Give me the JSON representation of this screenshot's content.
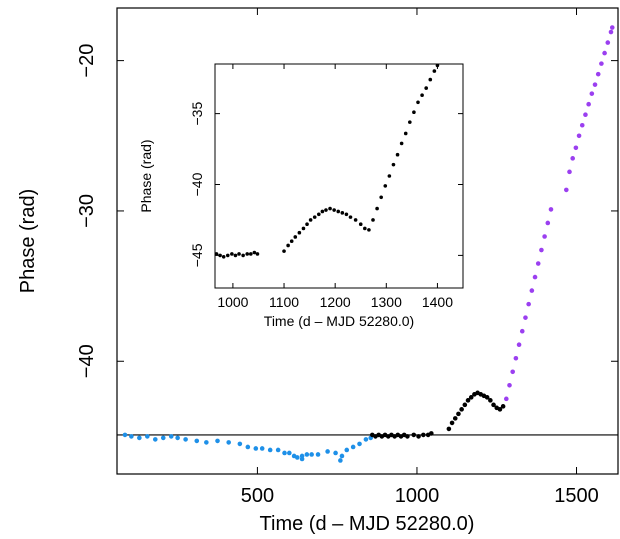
{
  "colors": {
    "blue": "#1e90e8",
    "black": "#000000",
    "purple": "#9b3ff0",
    "frame": "#000000"
  },
  "chart_data": [
    {
      "type": "scatter",
      "xlabel": "Time (d – MJD 52280.0)",
      "ylabel": "Phase (rad)",
      "xlim": [
        60,
        1630
      ],
      "ylim": [
        -47.5,
        -16.5
      ],
      "x_ticks": [
        500,
        1000,
        1500
      ],
      "y_ticks": [
        -20,
        -30,
        -40
      ],
      "reference_line_y": -44.9,
      "series": [
        {
          "color": "blue",
          "points": [
            [
              85,
              -44.9
            ],
            [
              105,
              -45.0
            ],
            [
              130,
              -45.1
            ],
            [
              155,
              -45.0
            ],
            [
              180,
              -45.2
            ],
            [
              205,
              -45.1
            ],
            [
              230,
              -45.0
            ],
            [
              250,
              -45.1
            ],
            [
              275,
              -45.2
            ],
            [
              310,
              -45.3
            ],
            [
              340,
              -45.4
            ],
            [
              375,
              -45.3
            ],
            [
              410,
              -45.4
            ],
            [
              445,
              -45.5
            ],
            [
              470,
              -45.7
            ],
            [
              495,
              -45.8
            ],
            [
              515,
              -45.8
            ],
            [
              540,
              -45.9
            ],
            [
              565,
              -45.9
            ],
            [
              585,
              -46.1
            ],
            [
              600,
              -46.1
            ],
            [
              615,
              -46.3
            ],
            [
              625,
              -46.4
            ],
            [
              640,
              -46.3
            ],
            [
              655,
              -46.2
            ],
            [
              670,
              -46.2
            ],
            [
              690,
              -46.2
            ],
            [
              720,
              -46.0
            ],
            [
              745,
              -46.1
            ],
            [
              765,
              -46.3
            ],
            [
              780,
              -45.9
            ],
            [
              800,
              -45.7
            ],
            [
              820,
              -45.5
            ],
            [
              840,
              -45.2
            ],
            [
              855,
              -45.1
            ],
            [
              640,
              -46.5
            ],
            [
              760,
              -46.6
            ]
          ]
        },
        {
          "color": "black",
          "points": [
            [
              860,
              -44.9
            ],
            [
              870,
              -45.0
            ],
            [
              880,
              -44.9
            ],
            [
              890,
              -45.0
            ],
            [
              900,
              -44.9
            ],
            [
              910,
              -45.0
            ],
            [
              920,
              -44.9
            ],
            [
              930,
              -45.0
            ],
            [
              940,
              -44.9
            ],
            [
              950,
              -45.0
            ],
            [
              960,
              -44.9
            ],
            [
              970,
              -45.0
            ],
            [
              990,
              -44.9
            ],
            [
              1005,
              -45.0
            ],
            [
              1020,
              -44.9
            ],
            [
              1035,
              -44.9
            ],
            [
              1045,
              -44.8
            ],
            [
              1100,
              -44.5
            ],
            [
              1110,
              -44.1
            ],
            [
              1120,
              -43.8
            ],
            [
              1130,
              -43.5
            ],
            [
              1140,
              -43.2
            ],
            [
              1150,
              -42.9
            ],
            [
              1160,
              -42.6
            ],
            [
              1170,
              -42.4
            ],
            [
              1180,
              -42.2
            ],
            [
              1190,
              -42.1
            ],
            [
              1200,
              -42.2
            ],
            [
              1210,
              -42.3
            ],
            [
              1220,
              -42.4
            ],
            [
              1230,
              -42.6
            ],
            [
              1240,
              -42.9
            ],
            [
              1250,
              -43.1
            ],
            [
              1260,
              -43.2
            ],
            [
              1270,
              -43.0
            ]
          ]
        },
        {
          "color": "purple",
          "points": [
            [
              1280,
              -42.5
            ],
            [
              1290,
              -41.6
            ],
            [
              1300,
              -40.7
            ],
            [
              1310,
              -39.8
            ],
            [
              1320,
              -38.9
            ],
            [
              1330,
              -38.0
            ],
            [
              1340,
              -37.1
            ],
            [
              1350,
              -36.2
            ],
            [
              1360,
              -35.3
            ],
            [
              1370,
              -34.4
            ],
            [
              1380,
              -33.5
            ],
            [
              1390,
              -32.6
            ],
            [
              1400,
              -31.7
            ],
            [
              1410,
              -30.8
            ],
            [
              1420,
              -29.9
            ],
            [
              1468,
              -28.6
            ],
            [
              1478,
              -27.4
            ],
            [
              1488,
              -26.5
            ],
            [
              1498,
              -25.8
            ],
            [
              1508,
              -25.0
            ],
            [
              1518,
              -24.3
            ],
            [
              1528,
              -23.6
            ],
            [
              1538,
              -22.9
            ],
            [
              1548,
              -22.2
            ],
            [
              1558,
              -21.6
            ],
            [
              1568,
              -20.9
            ],
            [
              1578,
              -20.2
            ],
            [
              1588,
              -19.5
            ],
            [
              1598,
              -18.8
            ],
            [
              1608,
              -18.1
            ],
            [
              1612,
              -17.8
            ]
          ]
        }
      ]
    },
    {
      "type": "scatter",
      "xlabel": "Time (d – MJD 52280.0)",
      "ylabel": "Phase (rad)",
      "xlim": [
        965,
        1450
      ],
      "ylim": [
        -47.3,
        -31.5
      ],
      "x_ticks": [
        1000,
        1100,
        1200,
        1300,
        1400
      ],
      "y_ticks": [
        -35,
        -40,
        -45
      ],
      "series": [
        {
          "color": "black",
          "points": [
            [
              968,
              -44.9
            ],
            [
              975,
              -45.0
            ],
            [
              982,
              -45.1
            ],
            [
              990,
              -45.0
            ],
            [
              998,
              -44.9
            ],
            [
              1005,
              -45.0
            ],
            [
              1012,
              -44.9
            ],
            [
              1020,
              -45.0
            ],
            [
              1028,
              -44.9
            ],
            [
              1035,
              -44.9
            ],
            [
              1042,
              -44.8
            ],
            [
              1048,
              -44.9
            ],
            [
              1100,
              -44.7
            ],
            [
              1108,
              -44.3
            ],
            [
              1115,
              -44.0
            ],
            [
              1122,
              -43.7
            ],
            [
              1130,
              -43.4
            ],
            [
              1138,
              -43.1
            ],
            [
              1145,
              -42.8
            ],
            [
              1152,
              -42.5
            ],
            [
              1160,
              -42.3
            ],
            [
              1168,
              -42.1
            ],
            [
              1175,
              -41.9
            ],
            [
              1182,
              -41.8
            ],
            [
              1190,
              -41.7
            ],
            [
              1198,
              -41.8
            ],
            [
              1206,
              -41.9
            ],
            [
              1214,
              -42.0
            ],
            [
              1222,
              -42.1
            ],
            [
              1230,
              -42.3
            ],
            [
              1240,
              -42.5
            ],
            [
              1250,
              -42.8
            ],
            [
              1258,
              -43.1
            ],
            [
              1266,
              -43.2
            ],
            [
              1274,
              -42.5
            ],
            [
              1282,
              -41.7
            ],
            [
              1290,
              -40.9
            ],
            [
              1298,
              -40.1
            ],
            [
              1306,
              -39.4
            ],
            [
              1314,
              -38.6
            ],
            [
              1322,
              -37.9
            ],
            [
              1330,
              -37.1
            ],
            [
              1338,
              -36.4
            ],
            [
              1346,
              -35.6
            ],
            [
              1354,
              -34.9
            ],
            [
              1362,
              -34.2
            ],
            [
              1370,
              -33.7
            ],
            [
              1378,
              -33.2
            ],
            [
              1386,
              -32.6
            ],
            [
              1394,
              -32.0
            ],
            [
              1400,
              -31.6
            ]
          ]
        }
      ]
    }
  ]
}
